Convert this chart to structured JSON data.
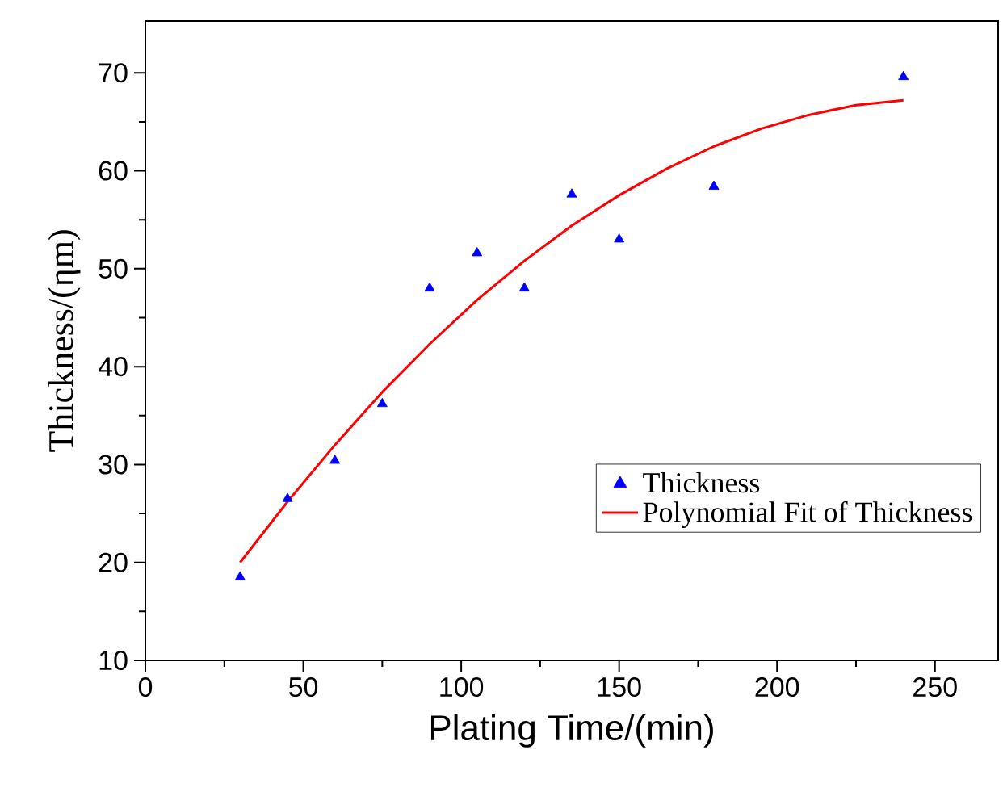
{
  "chart_data": {
    "type": "scatter",
    "xlabel": "Plating Time/(min)",
    "ylabel": "Thickness/(ηm)",
    "xlim": [
      0,
      270
    ],
    "ylim": [
      10,
      75.3
    ],
    "xticks": [
      0,
      50,
      100,
      150,
      200,
      250
    ],
    "yticks": [
      10,
      20,
      30,
      40,
      50,
      60,
      70
    ],
    "legend": "bottom right",
    "grid": false,
    "series": [
      {
        "name": "Thickness",
        "marker": "triangle",
        "color": "#0000ff",
        "x": [
          30,
          45,
          60,
          75,
          90,
          105,
          120,
          135,
          150,
          180,
          240
        ],
        "values": [
          18.5,
          26.5,
          30.4,
          36.2,
          48,
          51.6,
          48,
          57.6,
          53,
          58.4,
          69.6
        ]
      },
      {
        "name": "Polynomial Fit of Thickness",
        "type": "line",
        "line_style": "solid",
        "color": "#ff0000",
        "x": [
          30,
          45,
          60,
          75,
          90,
          105,
          120,
          135,
          150,
          165,
          180,
          195,
          210,
          225,
          240
        ],
        "values": [
          20.0,
          26.2,
          32.0,
          37.4,
          42.3,
          46.8,
          50.8,
          54.4,
          57.5,
          60.2,
          62.5,
          64.3,
          65.7,
          66.7,
          67.2
        ]
      }
    ]
  }
}
